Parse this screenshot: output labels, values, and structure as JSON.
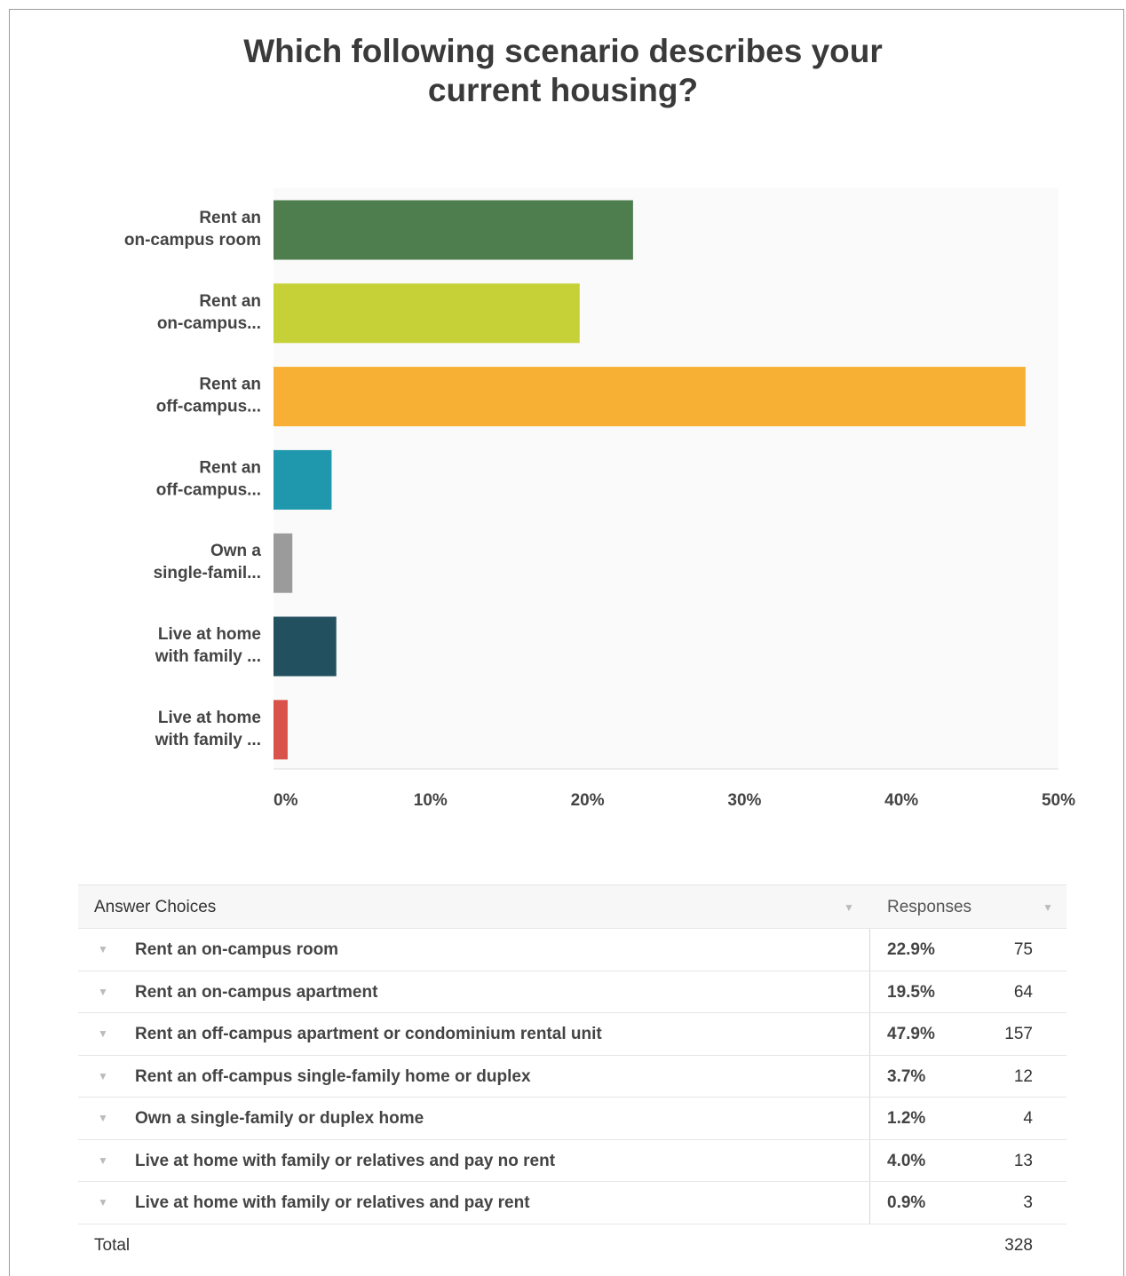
{
  "chart_data": {
    "type": "bar",
    "orientation": "horizontal",
    "title": [
      "Which following scenario describes your",
      "current housing?"
    ],
    "categories": [
      [
        "Rent an",
        "on-campus room"
      ],
      [
        "Rent an",
        "on-campus..."
      ],
      [
        "Rent an",
        "off-campus..."
      ],
      [
        "Rent an",
        "off-campus..."
      ],
      [
        "Own a",
        "single-famil..."
      ],
      [
        "Live at home",
        "with family ..."
      ],
      [
        "Live at home",
        "with family ..."
      ]
    ],
    "values": [
      22.9,
      19.5,
      47.9,
      3.7,
      1.2,
      4.0,
      0.9
    ],
    "colors": [
      "#4e7d4e",
      "#c5d136",
      "#f7b034",
      "#1f97ad",
      "#9b9b9b",
      "#23505f",
      "#d9534a"
    ],
    "xlim": [
      0,
      50
    ],
    "xticks": [
      0,
      10,
      20,
      30,
      40,
      50
    ],
    "xtick_labels": [
      "0%",
      "10%",
      "20%",
      "30%",
      "40%",
      "50%"
    ],
    "grid": false,
    "plot_background": "#fafafa"
  },
  "table": {
    "header": {
      "choice": "Answer Choices",
      "responses": "Responses"
    },
    "rows": [
      {
        "choice": "Rent an on-campus room",
        "pct": "22.9%",
        "count": "75"
      },
      {
        "choice": "Rent an on-campus apartment",
        "pct": "19.5%",
        "count": "64"
      },
      {
        "choice": "Rent an off-campus apartment or condominium rental unit",
        "pct": "47.9%",
        "count": "157"
      },
      {
        "choice": "Rent an off-campus single-family home or duplex",
        "pct": "3.7%",
        "count": "12"
      },
      {
        "choice": "Own a single-family or duplex home",
        "pct": "1.2%",
        "count": "4"
      },
      {
        "choice": "Live at home with family or relatives and pay no rent",
        "pct": "4.0%",
        "count": "13"
      },
      {
        "choice": "Live at home with family or relatives and pay rent",
        "pct": "0.9%",
        "count": "3"
      }
    ],
    "total_label": "Total",
    "total_count": "328"
  }
}
